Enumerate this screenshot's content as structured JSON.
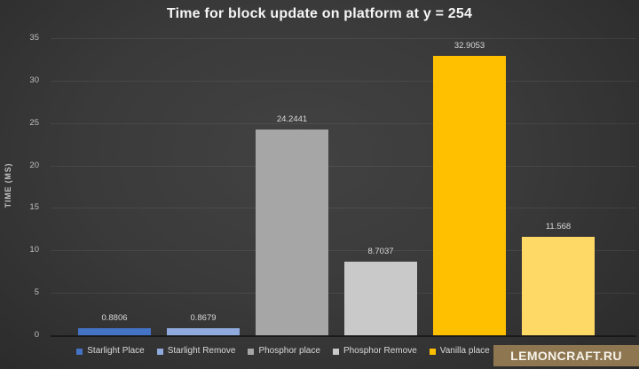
{
  "watermark": {
    "text": "LEMONCRAFT.RU",
    "background": "#8d7650"
  },
  "chart_data": {
    "type": "bar",
    "title": "Time for block update on platform at y = 254",
    "xlabel": "",
    "ylabel": "TIME (MS)",
    "ylim": [
      0,
      35
    ],
    "ytick_step": 5,
    "grid": true,
    "legend_position": "bottom",
    "background": "dark-gray-radial-gradient",
    "bars": [
      {
        "name": "Starlight Place",
        "value": 0.8806,
        "label": "0.8806",
        "color": "#4472c4"
      },
      {
        "name": "Starlight Remove",
        "value": 0.8679,
        "label": "0.8679",
        "color": "#8faadc"
      },
      {
        "name": "Phosphor place",
        "value": 24.2441,
        "label": "24.2441",
        "color": "#a6a6a6"
      },
      {
        "name": "Phosphor Remove",
        "value": 8.7037,
        "label": "8.7037",
        "color": "#c9c9c9"
      },
      {
        "name": "Vanilla place",
        "value": 32.9053,
        "label": "32.9053",
        "color": "#ffc000"
      },
      {
        "name": "",
        "value": 11.568,
        "label": "11.568",
        "color": "#ffd966"
      }
    ]
  }
}
